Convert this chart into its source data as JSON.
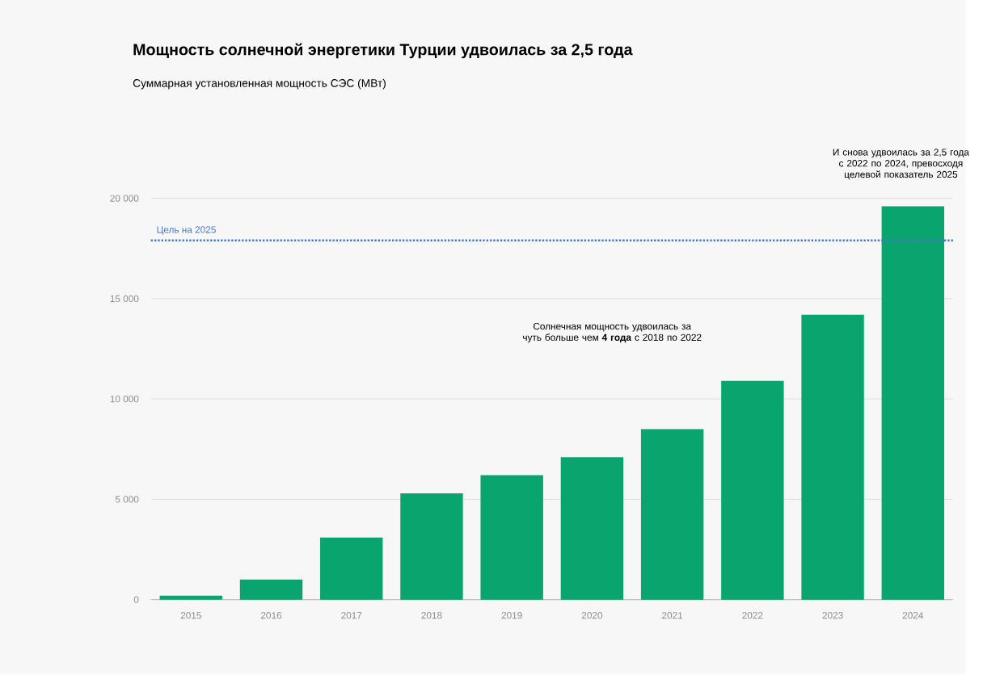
{
  "chart_data": {
    "type": "bar",
    "title": "Мощность солнечной энергетики Турции удвоилась за 2,5 года",
    "subtitle": "Суммарная установленная мощность СЭС (МВт)",
    "categories": [
      "2015",
      "2016",
      "2017",
      "2018",
      "2019",
      "2020",
      "2021",
      "2022",
      "2023",
      "2024"
    ],
    "values": [
      200,
      1000,
      3100,
      5300,
      6200,
      7100,
      8500,
      10900,
      14200,
      19600
    ],
    "color": "#0aa56e",
    "ylim": [
      0,
      20000
    ],
    "yticks": [
      0,
      {
        "value": 5000,
        "label": "5 000"
      },
      {
        "value": 10000,
        "label": "10 000"
      },
      {
        "value": 15000,
        "label": "15 000"
      },
      {
        "value": 20000,
        "label": "20 000"
      }
    ],
    "grid": "y",
    "ref_lines": [
      {
        "axis": "y",
        "value": 17900,
        "label": "Цель на 2025",
        "color": "#4a78c8",
        "line_style": "dotted"
      }
    ],
    "annotations": [
      "Солнечная мощность удвоилась за чуть больше чем **4 года** с 2018 по 2022",
      "И снова удвоилась за 2,5 года с 2022 по 2024, превосходя целевой показатель 2025"
    ]
  }
}
